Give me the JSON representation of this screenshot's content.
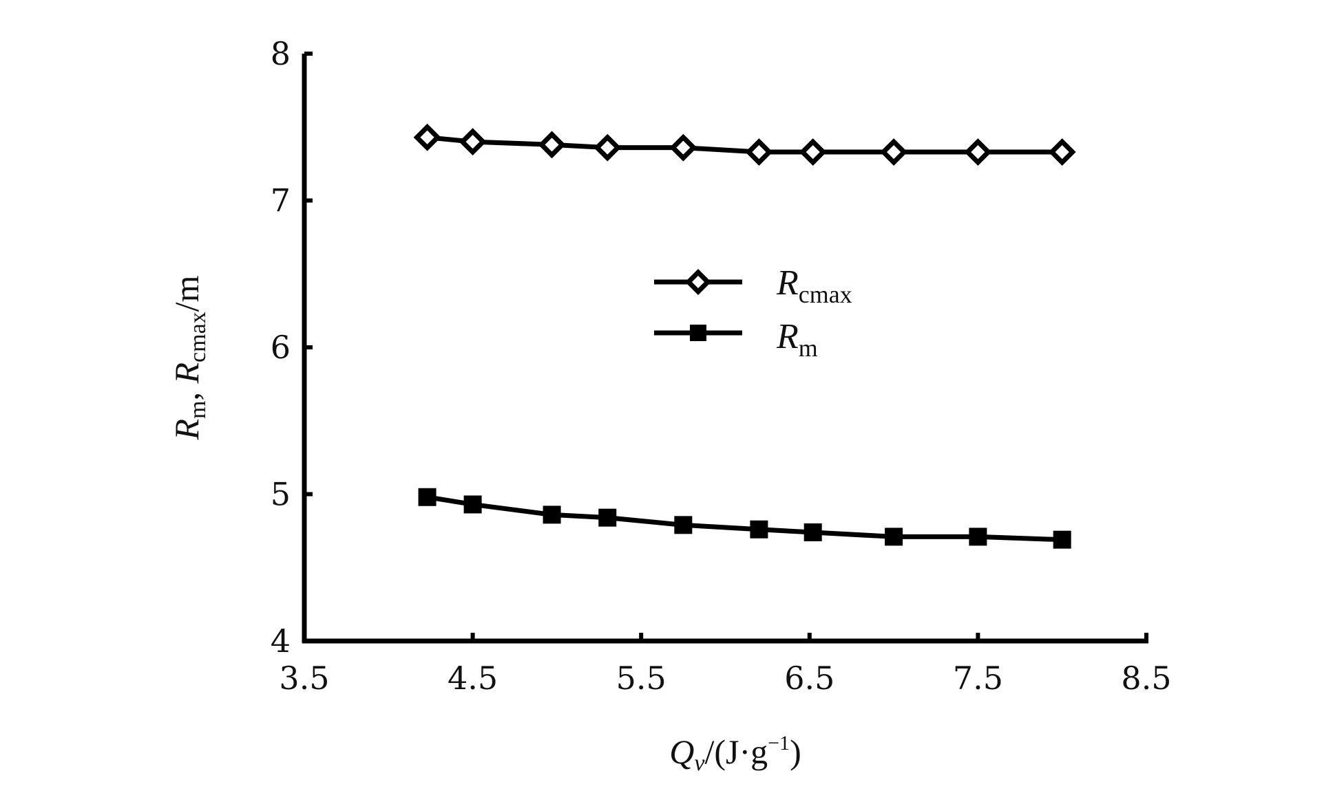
{
  "chart_data": {
    "type": "line",
    "xlabel": {
      "main": "Q",
      "sub": "v",
      "rest": "/(J·g",
      "sup": "−1",
      "close": ")"
    },
    "ylabel": {
      "r1": "R",
      "s1": "m",
      "sep": ", ",
      "r2": "R",
      "s2": "cmax",
      "unit": "/m"
    },
    "xlim": [
      3.5,
      8.5
    ],
    "ylim": [
      4,
      8
    ],
    "xticks": [
      "3.5",
      "4.5",
      "5.5",
      "6.5",
      "7.5",
      "8.5"
    ],
    "yticks": [
      "4",
      "5",
      "6",
      "7",
      "8"
    ],
    "grid": false,
    "legend_position": "center",
    "series": [
      {
        "legend_main": "R",
        "legend_sub": "cmax",
        "marker": "open-diamond",
        "color": "#000000",
        "x": [
          4.23,
          4.5,
          4.97,
          5.3,
          5.75,
          6.2,
          6.52,
          7.0,
          7.5,
          8.0
        ],
        "y": [
          7.43,
          7.4,
          7.38,
          7.36,
          7.36,
          7.33,
          7.33,
          7.33,
          7.33,
          7.33
        ]
      },
      {
        "legend_main": "R",
        "legend_sub": "m",
        "marker": "filled-square",
        "color": "#000000",
        "x": [
          4.23,
          4.5,
          4.97,
          5.3,
          5.75,
          6.2,
          6.52,
          7.0,
          7.5,
          8.0
        ],
        "y": [
          4.98,
          4.93,
          4.86,
          4.84,
          4.79,
          4.76,
          4.74,
          4.71,
          4.71,
          4.69
        ]
      }
    ]
  }
}
